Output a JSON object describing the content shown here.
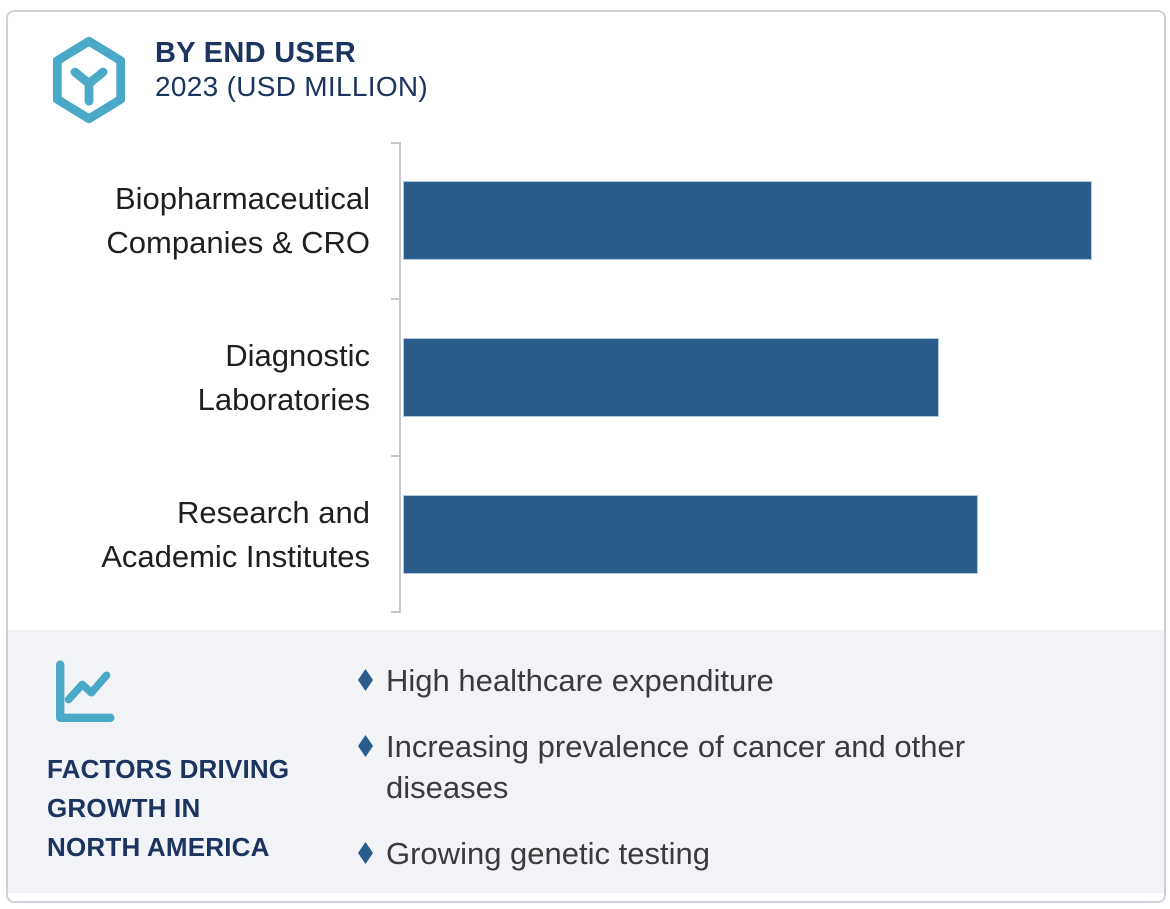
{
  "header": {
    "icon": "hexagon-molecule-icon",
    "title": "BY END USER",
    "subtitle": "2023 (USD MILLION)"
  },
  "chart_data": {
    "type": "bar",
    "orientation": "horizontal",
    "title": "BY END USER",
    "subtitle": "2023 (USD MILLION)",
    "unit": "USD Million",
    "year": "2023",
    "categories": [
      "Biopharmaceutical Companies & CRO",
      "Diagnostic Laboratories",
      "Research and Academic Institutes"
    ],
    "categories_display": [
      "Biopharmaceutical\nCompanies & CRO",
      "Diagnostic\nLaboratories",
      "Research and\nAcademic Institutes"
    ],
    "values_pct_of_max": [
      100,
      77.8,
      83.4
    ],
    "value_labels": "none",
    "legend": "none",
    "gridlines": false,
    "axis_tick_labels": "none",
    "bar_color": "#2a5c8c"
  },
  "factors": {
    "icon": "line-chart-icon",
    "title": "FACTORS DRIVING\nGROWTH IN\nNORTH AMERICA",
    "items": [
      "High healthcare expenditure",
      "Increasing prevalence of cancer and other\ndiseases",
      "Growing genetic testing"
    ]
  },
  "colors": {
    "accent_teal": "#4aa9c7",
    "navy": "#1b3560",
    "bar_blue": "#2a5c8c",
    "bar_border": "#aecbe2",
    "panel_bg": "#f1f3f7",
    "card_border": "#ced1d9",
    "axis_gray": "#c6c8cb",
    "body_text": "#3b3b3b",
    "category_text": "#1f1f1f"
  }
}
